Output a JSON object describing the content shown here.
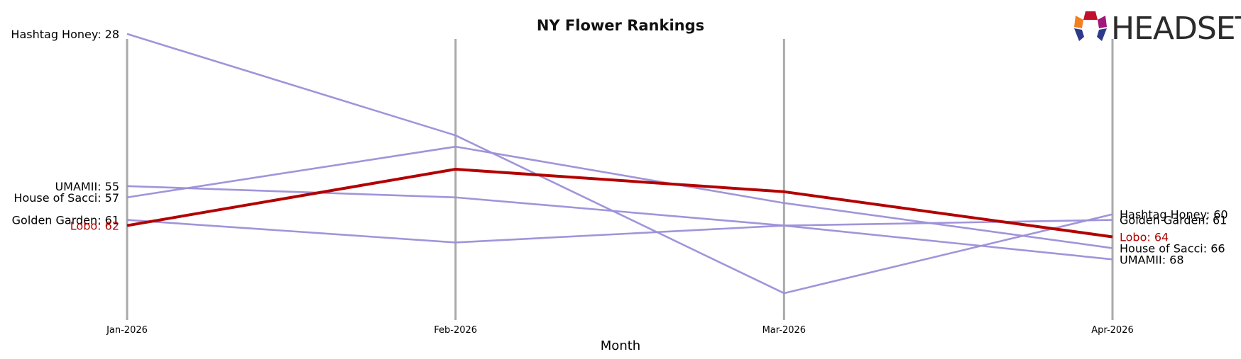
{
  "chart_data": {
    "type": "line",
    "title": "NY Flower Rankings",
    "xlabel": "Month",
    "ylabel": "",
    "categories": [
      "Jan-2026",
      "Feb-2026",
      "Mar-2026",
      "Apr-2026"
    ],
    "y_inverted": true,
    "ylim": [
      26,
      76
    ],
    "grid": "vertical",
    "series": [
      {
        "name": "Hashtag Honey",
        "values": [
          28,
          46,
          74,
          60
        ],
        "color": "#9b8fd8",
        "highlight": false
      },
      {
        "name": "UMAMII",
        "values": [
          55,
          57,
          62,
          68
        ],
        "color": "#9b8fd8",
        "highlight": false
      },
      {
        "name": "House of Sacci",
        "values": [
          57,
          48,
          58,
          66
        ],
        "color": "#9b8fd8",
        "highlight": false
      },
      {
        "name": "Golden Garden",
        "values": [
          61,
          65,
          62,
          61
        ],
        "color": "#9b8fd8",
        "highlight": false
      },
      {
        "name": "Lobo",
        "values": [
          62,
          52,
          56,
          64
        ],
        "color": "#b30000",
        "highlight": true
      }
    ],
    "left_labels": [
      {
        "text": "Hashtag Honey: 28",
        "value": 28
      },
      {
        "text": "UMAMII: 55",
        "value": 55
      },
      {
        "text": "House of Sacci: 57",
        "value": 57
      },
      {
        "text": "Golden Garden: 61",
        "value": 61
      },
      {
        "text": "Lobo: 62",
        "value": 62
      }
    ],
    "right_labels": [
      {
        "text": "Hashtag Honey: 60",
        "value": 60
      },
      {
        "text": "Golden Garden: 61",
        "value": 61
      },
      {
        "text": "Lobo: 64",
        "value": 64
      },
      {
        "text": "House of Sacci: 66",
        "value": 66
      },
      {
        "text": "UMAMII: 68",
        "value": 68
      }
    ]
  },
  "logo": {
    "text": "HEADSET",
    "icon": "headset-logo-icon"
  },
  "colors": {
    "highlight": "#b30000",
    "series": "#9b8fd8",
    "grid": "#aaaaaa",
    "label": "#000000"
  }
}
